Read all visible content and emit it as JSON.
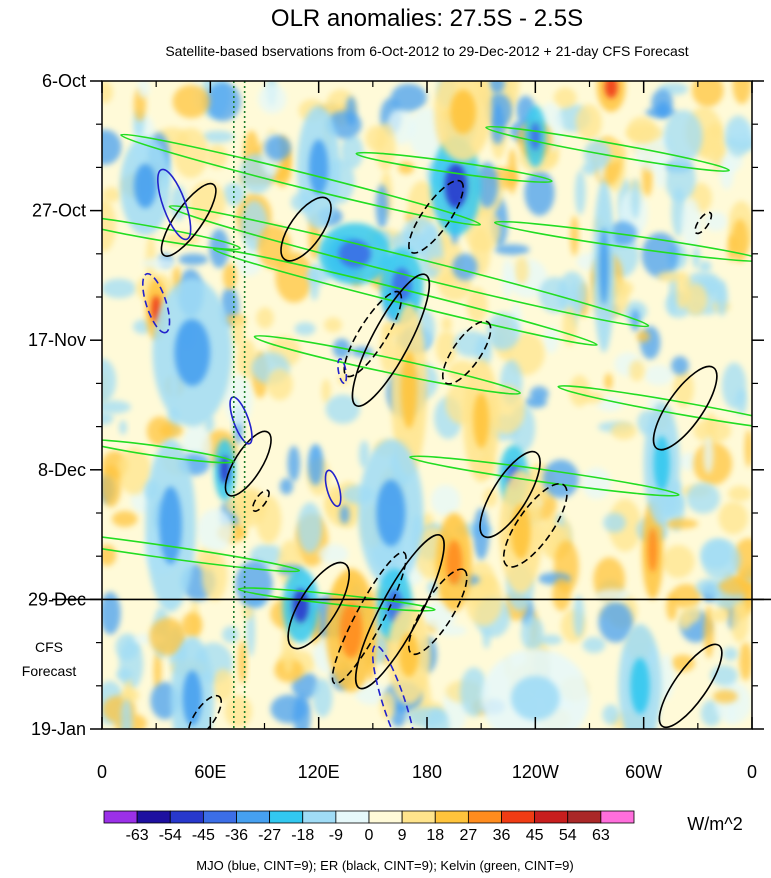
{
  "chart_data": {
    "type": "heatmap",
    "title": "OLR anomalies: 27.5S - 2.5S",
    "subtitle": "Satellite-based bservations from 6-Oct-2012 to 29-Dec-2012 + 21-day CFS Forecast",
    "x_ticks": [
      "0",
      "60E",
      "120E",
      "180",
      "120W",
      "60W",
      "0"
    ],
    "x_tick_values": [
      0,
      60,
      120,
      180,
      240,
      300,
      360
    ],
    "xlim": [
      0,
      360
    ],
    "y_ticks": [
      "6-Oct",
      "27-Oct",
      "17-Nov",
      "8-Dec",
      "29-Dec",
      "19-Jan"
    ],
    "y_tick_values": [
      0,
      21,
      42,
      63,
      84,
      105
    ],
    "ylim": [
      0,
      105
    ],
    "forecast_label_line1": "CFS",
    "forecast_label_line2": "Forecast",
    "forecast_start_day": 84,
    "reference_lines_lon": [
      73,
      79
    ],
    "colorbar": {
      "unit": "W/m^2",
      "labels": [
        "-63",
        "-54",
        "-45",
        "-36",
        "-27",
        "-18",
        "-9",
        "0",
        "9",
        "18",
        "27",
        "36",
        "45",
        "54",
        "63"
      ],
      "colors": [
        "#9b30e8",
        "#1e10a0",
        "#2838cc",
        "#3c6ee6",
        "#46a0f0",
        "#32c8f0",
        "#a0dcf6",
        "#e6f8fa",
        "#fffad8",
        "#ffe48c",
        "#ffc43c",
        "#ff8c1e",
        "#f03c14",
        "#c81e1e",
        "#aa2828",
        "#ff6edc"
      ]
    },
    "footer": "MJO (blue, CINT=9); ER (black, CINT=9); Kelvin (green, CINT=9)",
    "contour_colors": {
      "mjo": "#2222cc",
      "er": "#000000",
      "kelvin": "#22dd22"
    },
    "anomaly_features": [
      {
        "lon": 240,
        "day": 9,
        "w": 6,
        "h": 5,
        "v": -36
      },
      {
        "lon": 196,
        "day": 17,
        "w": 14,
        "h": 8,
        "v": -45
      },
      {
        "lon": 24,
        "day": 17,
        "w": 14,
        "h": 8,
        "v": -27
      },
      {
        "lon": 120,
        "day": 14,
        "w": 12,
        "h": 10,
        "v": -27
      },
      {
        "lon": 282,
        "day": 1,
        "w": 8,
        "h": 4,
        "v": 45
      },
      {
        "lon": 278,
        "day": 30,
        "w": 6,
        "h": 14,
        "v": -27
      },
      {
        "lon": 30,
        "day": 37,
        "w": 6,
        "h": 5,
        "v": 45
      },
      {
        "lon": 166,
        "day": 33,
        "w": 12,
        "h": 6,
        "v": -36
      },
      {
        "lon": 140,
        "day": 28,
        "w": 20,
        "h": 5,
        "v": -36
      },
      {
        "lon": 50,
        "day": 44,
        "w": 22,
        "h": 12,
        "v": -27
      },
      {
        "lon": 200,
        "day": 5,
        "w": 16,
        "h": 8,
        "v": 27
      },
      {
        "lon": 170,
        "day": 50,
        "w": 10,
        "h": 14,
        "v": 27
      },
      {
        "lon": 210,
        "day": 55,
        "w": 10,
        "h": 10,
        "v": 27
      },
      {
        "lon": 68,
        "day": 63,
        "w": 6,
        "h": 5,
        "v": -45
      },
      {
        "lon": 38,
        "day": 72,
        "w": 14,
        "h": 14,
        "v": -27
      },
      {
        "lon": 228,
        "day": 64,
        "w": 8,
        "h": 5,
        "v": -36
      },
      {
        "lon": 232,
        "day": 73,
        "w": 12,
        "h": 10,
        "v": 27
      },
      {
        "lon": 160,
        "day": 70,
        "w": 18,
        "h": 12,
        "v": -27
      },
      {
        "lon": 305,
        "day": 76,
        "w": 6,
        "h": 8,
        "v": 36
      },
      {
        "lon": 110,
        "day": 85,
        "w": 10,
        "h": 6,
        "v": -45
      },
      {
        "lon": 162,
        "day": 85,
        "w": 10,
        "h": 6,
        "v": -36
      },
      {
        "lon": 138,
        "day": 89,
        "w": 14,
        "h": 10,
        "v": 36
      },
      {
        "lon": 170,
        "day": 93,
        "w": 12,
        "h": 8,
        "v": 27
      },
      {
        "lon": 195,
        "day": 78,
        "w": 10,
        "h": 8,
        "v": 36
      },
      {
        "lon": 298,
        "day": 98,
        "w": 12,
        "h": 10,
        "v": -18
      },
      {
        "lon": 50,
        "day": 100,
        "w": 12,
        "h": 10,
        "v": -27
      },
      {
        "lon": 240,
        "day": 100,
        "w": 30,
        "h": 8,
        "v": -9
      },
      {
        "lon": 310,
        "day": 62,
        "w": 10,
        "h": 10,
        "v": -18
      }
    ],
    "contours": {
      "mjo": [
        {
          "lon": 40,
          "day": 20,
          "rx": 6,
          "ry": 1.8,
          "rot": 70,
          "dash": false
        },
        {
          "lon": 30,
          "day": 36,
          "rx": 5,
          "ry": 1.6,
          "rot": 72,
          "dash": true
        },
        {
          "lon": 77,
          "day": 55,
          "rx": 4,
          "ry": 1.2,
          "rot": 70,
          "dash": false
        },
        {
          "lon": 128,
          "day": 66,
          "rx": 3,
          "ry": 1.0,
          "rot": 75,
          "dash": false
        },
        {
          "lon": 133,
          "day": 47,
          "rx": 2,
          "ry": 0.6,
          "rot": 80,
          "dash": true
        },
        {
          "lon": 162,
          "day": 101,
          "rx": 10,
          "ry": 1.8,
          "rot": 72,
          "dash": true
        }
      ],
      "er": [
        {
          "lon": 48,
          "day": 22.5,
          "rx": 7,
          "ry": 2.2,
          "rot": -55,
          "dash": false
        },
        {
          "lon": 113,
          "day": 24,
          "rx": 6,
          "ry": 2.6,
          "rot": -55,
          "dash": false
        },
        {
          "lon": 185,
          "day": 22,
          "rx": 7,
          "ry": 2.2,
          "rot": -55,
          "dash": true
        },
        {
          "lon": 160,
          "day": 42,
          "rx": 12,
          "ry": 3.0,
          "rot": -62,
          "dash": false
        },
        {
          "lon": 150,
          "day": 41,
          "rx": 8,
          "ry": 2.2,
          "rot": -58,
          "dash": true
        },
        {
          "lon": 202,
          "day": 44,
          "rx": 6,
          "ry": 2.2,
          "rot": -55,
          "dash": true
        },
        {
          "lon": 81,
          "day": 62,
          "rx": 6,
          "ry": 2.2,
          "rot": -58,
          "dash": false
        },
        {
          "lon": 88,
          "day": 68,
          "rx": 2,
          "ry": 0.8,
          "rot": -55,
          "dash": true
        },
        {
          "lon": 226,
          "day": 67,
          "rx": 8,
          "ry": 2.8,
          "rot": -58,
          "dash": false
        },
        {
          "lon": 240,
          "day": 72,
          "rx": 8,
          "ry": 2.8,
          "rot": -55,
          "dash": true
        },
        {
          "lon": 120,
          "day": 85,
          "rx": 8,
          "ry": 3.0,
          "rot": -58,
          "dash": false
        },
        {
          "lon": 148,
          "day": 87,
          "rx": 12,
          "ry": 2.2,
          "rot": -62,
          "dash": true
        },
        {
          "lon": 165,
          "day": 86,
          "rx": 14,
          "ry": 3.2,
          "rot": -62,
          "dash": false
        },
        {
          "lon": 186,
          "day": 86,
          "rx": 8,
          "ry": 2.4,
          "rot": -58,
          "dash": true
        },
        {
          "lon": 323,
          "day": 53,
          "rx": 8,
          "ry": 2.8,
          "rot": -55,
          "dash": false
        },
        {
          "lon": 333,
          "day": 23,
          "rx": 2,
          "ry": 0.8,
          "rot": -55,
          "dash": true
        },
        {
          "lon": 326,
          "day": 98,
          "rx": 8,
          "ry": 2.6,
          "rot": -55,
          "dash": false
        },
        {
          "lon": 57,
          "day": 103,
          "rx": 4,
          "ry": 1.6,
          "rot": -55,
          "dash": true
        }
      ],
      "kelvin": [
        {
          "lon": 26,
          "day": 24.5,
          "rx": 15,
          "ry": 1.0,
          "rot": 10
        },
        {
          "lon": 110,
          "day": 16,
          "rx": 30,
          "ry": 1.2,
          "rot": 14
        },
        {
          "lon": 195,
          "day": 14,
          "rx": 16,
          "ry": 0.9,
          "rot": 8
        },
        {
          "lon": 280,
          "day": 11,
          "rx": 20,
          "ry": 1.0,
          "rot": 10
        },
        {
          "lon": 170,
          "day": 30,
          "rx": 40,
          "ry": 1.5,
          "rot": 14
        },
        {
          "lon": 168,
          "day": 35,
          "rx": 32,
          "ry": 1.1,
          "rot": 14
        },
        {
          "lon": 158,
          "day": 46,
          "rx": 22,
          "ry": 1.2,
          "rot": 12
        },
        {
          "lon": 292,
          "day": 26,
          "rx": 22,
          "ry": 1.0,
          "rot": 8
        },
        {
          "lon": 320,
          "day": 53,
          "rx": 20,
          "ry": 1.0,
          "rot": 10
        },
        {
          "lon": 32,
          "day": 60,
          "rx": 12,
          "ry": 0.8,
          "rot": 8
        },
        {
          "lon": 245,
          "day": 64,
          "rx": 22,
          "ry": 1.0,
          "rot": 8
        },
        {
          "lon": 28,
          "day": 76,
          "rx": 24,
          "ry": 1.0,
          "rot": 8
        },
        {
          "lon": 130,
          "day": 84,
          "rx": 16,
          "ry": 0.8,
          "rot": 6
        }
      ]
    }
  }
}
